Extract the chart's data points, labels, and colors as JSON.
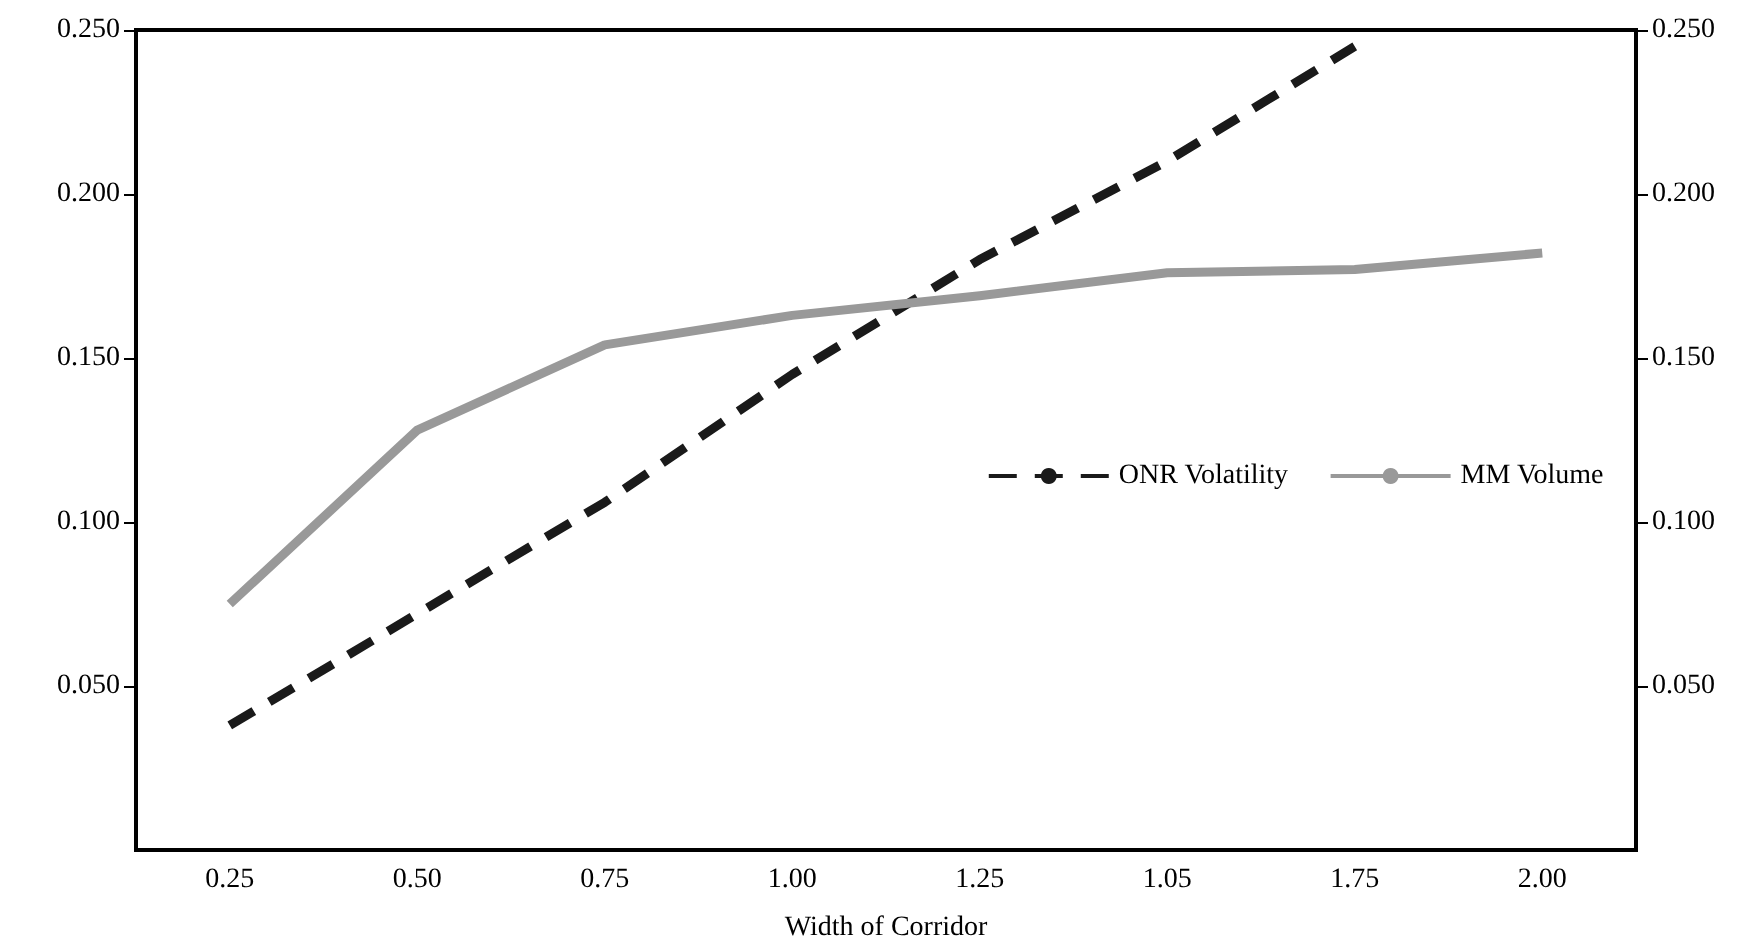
{
  "chart_data": {
    "type": "line",
    "xlabel": "Width of Corridor",
    "categories": [
      "0.25",
      "0.50",
      "0.75",
      "1.00",
      "1.25",
      "1.05",
      "1.75",
      "2.00"
    ],
    "series": [
      {
        "name": "ONR Volatility",
        "color": "#1a1a1a",
        "line_style": "dashed",
        "values": [
          0.038,
          0.072,
          0.106,
          0.145,
          0.18,
          0.21,
          0.245,
          null
        ]
      },
      {
        "name": "MM Volume",
        "color": "#999999",
        "line_style": "solid",
        "values": [
          0.075,
          0.128,
          0.154,
          0.163,
          0.169,
          0.176,
          0.177,
          0.182
        ]
      }
    ],
    "ylim": [
      0,
      0.25
    ],
    "yticks": [
      {
        "value": 0.05,
        "label": "0.050"
      },
      {
        "value": 0.1,
        "label": "0.100"
      },
      {
        "value": 0.15,
        "label": "0.150"
      },
      {
        "value": 0.2,
        "label": "0.200"
      },
      {
        "value": 0.25,
        "label": "0.250"
      }
    ],
    "y2lim": [
      0,
      0.25
    ],
    "y2ticks": [
      {
        "value": 0.05,
        "label": "0.050"
      },
      {
        "value": 0.1,
        "label": "0.100"
      },
      {
        "value": 0.15,
        "label": "0.150"
      },
      {
        "value": 0.2,
        "label": "0.200"
      },
      {
        "value": 0.25,
        "label": "0.250"
      }
    ],
    "grid": false,
    "legend": "right",
    "marker": "none"
  }
}
